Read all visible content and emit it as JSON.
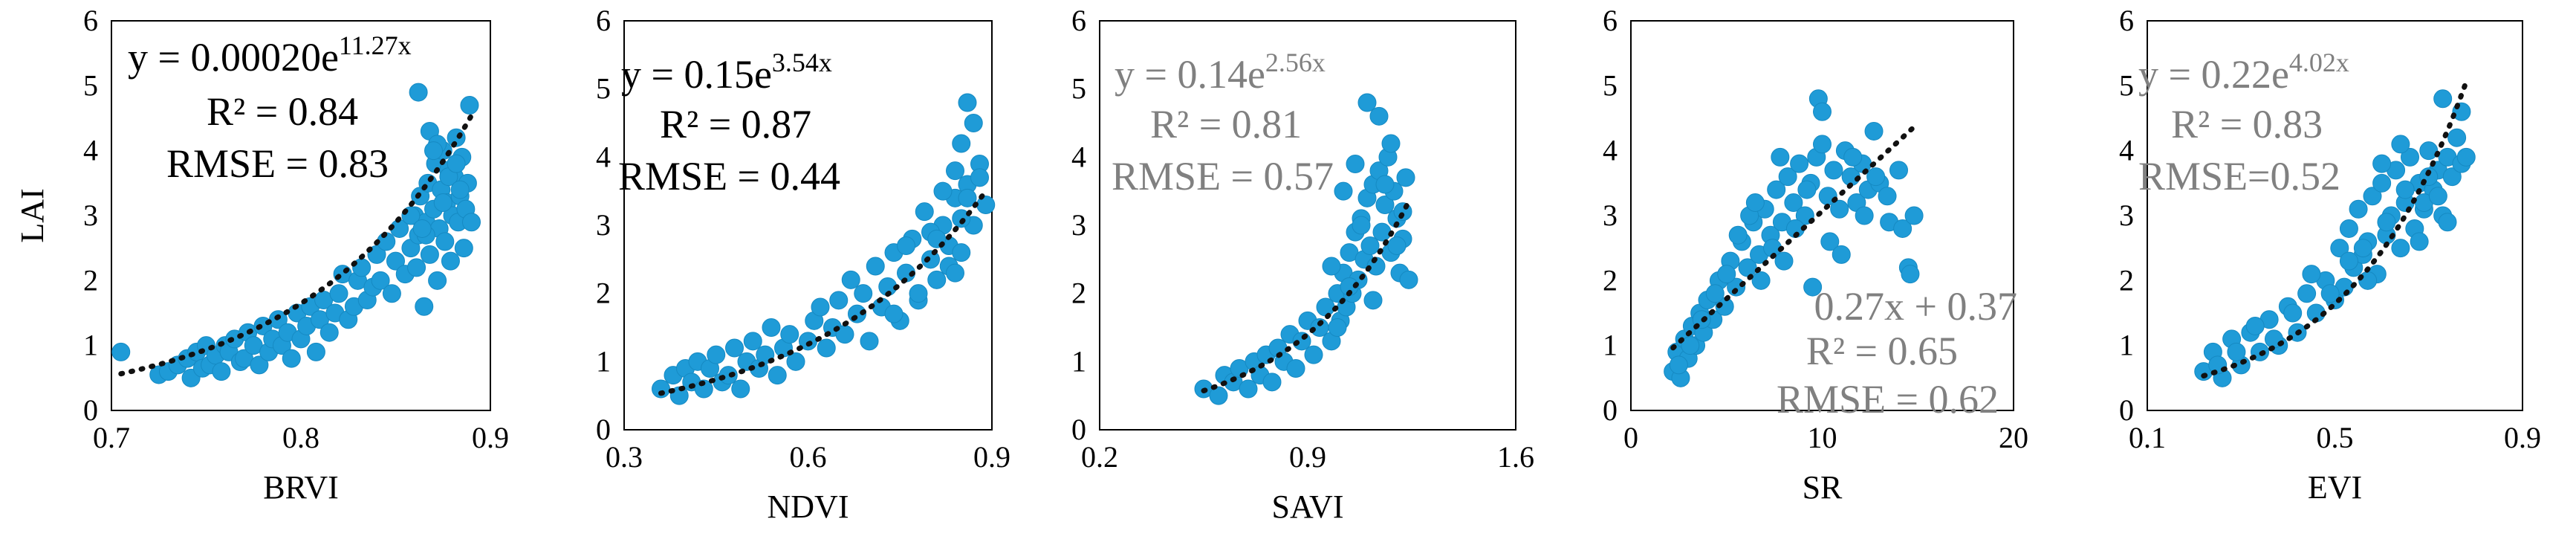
{
  "chart_data": [
    {
      "type": "scatter",
      "xlabel": "BRVI",
      "ylabel": "LAI",
      "xlim": [
        0.7,
        0.9
      ],
      "ylim": [
        0,
        6
      ],
      "xticks": [
        "0.7",
        "0.8",
        "0.9"
      ],
      "yticks": [
        "0",
        "1",
        "2",
        "3",
        "4",
        "5",
        "6"
      ],
      "fit": {
        "model": "exp",
        "a": 0.0002,
        "b": 11.27
      },
      "annotations": {
        "eq_main": "y = 0.00020e",
        "eq_exp": "11.27x",
        "r2": "R² = 0.84",
        "rmse": "RMSE = 0.83"
      },
      "points_x": [
        0.705,
        0.725,
        0.73,
        0.735,
        0.74,
        0.742,
        0.745,
        0.748,
        0.75,
        0.752,
        0.755,
        0.758,
        0.76,
        0.762,
        0.765,
        0.768,
        0.77,
        0.772,
        0.775,
        0.778,
        0.78,
        0.783,
        0.785,
        0.788,
        0.79,
        0.793,
        0.795,
        0.798,
        0.8,
        0.803,
        0.805,
        0.808,
        0.81,
        0.812,
        0.815,
        0.818,
        0.82,
        0.822,
        0.825,
        0.828,
        0.83,
        0.832,
        0.835,
        0.838,
        0.84,
        0.842,
        0.845,
        0.848,
        0.85,
        0.852,
        0.855,
        0.858,
        0.86,
        0.861,
        0.862,
        0.863,
        0.865,
        0.866,
        0.867,
        0.868,
        0.87,
        0.871,
        0.872,
        0.873,
        0.874,
        0.875,
        0.876,
        0.877,
        0.878,
        0.879,
        0.88,
        0.881,
        0.882,
        0.883,
        0.884,
        0.885,
        0.886,
        0.887,
        0.888,
        0.889,
        0.89,
        0.862,
        0.868,
        0.872,
        0.878,
        0.882,
        0.87,
        0.875,
        0.866,
        0.884,
        0.858,
        0.864
      ],
      "points_y": [
        0.9,
        0.55,
        0.6,
        0.7,
        0.8,
        0.5,
        0.9,
        0.65,
        1.0,
        0.7,
        0.85,
        0.6,
        1.0,
        0.9,
        1.1,
        0.75,
        0.8,
        1.2,
        1.0,
        0.7,
        1.3,
        0.9,
        1.1,
        1.4,
        1.0,
        1.2,
        0.8,
        1.5,
        1.1,
        1.3,
        1.6,
        0.9,
        1.4,
        1.7,
        1.2,
        1.5,
        1.8,
        2.1,
        1.4,
        1.6,
        2.0,
        2.2,
        1.7,
        1.9,
        2.4,
        2.0,
        2.6,
        1.8,
        2.3,
        2.8,
        2.1,
        2.5,
        3.0,
        2.2,
        2.7,
        3.3,
        1.6,
        2.9,
        3.5,
        2.4,
        3.1,
        3.8,
        2.0,
        2.8,
        3.4,
        4.0,
        2.6,
        3.2,
        3.7,
        2.3,
        3.0,
        3.6,
        4.2,
        2.9,
        3.3,
        3.9,
        2.5,
        3.1,
        3.5,
        4.7,
        2.9,
        4.9,
        4.3,
        4.1,
        3.6,
        3.8,
        4.0,
        3.2,
        2.7,
        3.4,
        3.0,
        2.8
      ]
    },
    {
      "type": "scatter",
      "xlabel": "NDVI",
      "ylabel": "",
      "xlim": [
        0.3,
        0.9
      ],
      "ylim": [
        0,
        6
      ],
      "xticks": [
        "0.3",
        "0.6",
        "0.9"
      ],
      "yticks": [
        "0",
        "1",
        "2",
        "3",
        "4",
        "5",
        "6"
      ],
      "fit": {
        "model": "exp",
        "a": 0.15,
        "b": 3.54
      },
      "annotations": {
        "eq_main": "y = 0.15e",
        "eq_exp": "3.54x",
        "r2": "R² = 0.87",
        "rmse": "RMSE = 0.44"
      },
      "points_x": [
        0.36,
        0.38,
        0.39,
        0.4,
        0.41,
        0.42,
        0.43,
        0.44,
        0.45,
        0.46,
        0.47,
        0.48,
        0.49,
        0.5,
        0.51,
        0.52,
        0.53,
        0.54,
        0.55,
        0.56,
        0.57,
        0.58,
        0.6,
        0.61,
        0.62,
        0.63,
        0.64,
        0.65,
        0.66,
        0.67,
        0.68,
        0.69,
        0.7,
        0.71,
        0.72,
        0.73,
        0.74,
        0.75,
        0.76,
        0.77,
        0.78,
        0.79,
        0.8,
        0.81,
        0.82,
        0.83,
        0.84,
        0.85,
        0.86,
        0.87,
        0.88,
        0.89,
        0.8,
        0.82,
        0.84,
        0.85,
        0.86,
        0.87,
        0.83,
        0.81,
        0.88,
        0.78,
        0.76,
        0.74,
        0.85,
        0.86,
        0.84
      ],
      "points_y": [
        0.6,
        0.8,
        0.5,
        0.9,
        0.7,
        1.0,
        0.6,
        0.9,
        1.1,
        0.7,
        0.8,
        1.2,
        0.6,
        1.0,
        1.3,
        0.9,
        1.1,
        1.5,
        0.8,
        1.2,
        1.4,
        1.0,
        1.3,
        1.6,
        1.8,
        1.2,
        1.5,
        1.9,
        1.4,
        2.2,
        1.7,
        2.0,
        1.3,
        2.4,
        1.8,
        2.1,
        2.6,
        1.6,
        2.3,
        2.8,
        1.9,
        3.2,
        2.5,
        2.2,
        3.0,
        2.7,
        3.4,
        2.6,
        3.6,
        3.0,
        3.9,
        3.3,
        2.9,
        3.5,
        3.8,
        4.2,
        4.8,
        4.5,
        2.4,
        2.8,
        3.7,
        2.0,
        2.7,
        1.7,
        3.1,
        3.4,
        2.3
      ]
    },
    {
      "type": "scatter",
      "xlabel": "SAVI",
      "ylabel": "",
      "xlim": [
        0.2,
        1.6
      ],
      "ylim": [
        0,
        6
      ],
      "xticks": [
        "0.2",
        "0.9",
        "1.6"
      ],
      "yticks": [
        "0",
        "1",
        "2",
        "3",
        "4",
        "5",
        "6"
      ],
      "fit": {
        "model": "exp",
        "a": 0.14,
        "b": 2.56
      },
      "annotations": {
        "eq_main": "y = 0.14e",
        "eq_exp": "2.56x",
        "r2": "R² = 0.81",
        "rmse": "RMSE = 0.57"
      },
      "points_x": [
        0.55,
        0.6,
        0.62,
        0.65,
        0.67,
        0.7,
        0.72,
        0.74,
        0.76,
        0.78,
        0.8,
        0.82,
        0.84,
        0.86,
        0.88,
        0.9,
        0.92,
        0.94,
        0.96,
        0.98,
        1.0,
        1.01,
        1.02,
        1.03,
        1.04,
        1.05,
        1.06,
        1.07,
        1.08,
        1.09,
        1.1,
        1.11,
        1.12,
        1.13,
        1.14,
        1.15,
        1.16,
        1.17,
        1.18,
        1.19,
        1.2,
        1.21,
        1.22,
        1.23,
        1.24,
        1.02,
        1.06,
        1.1,
        1.14,
        1.18,
        1.08,
        1.12,
        1.16,
        1.04,
        1.2,
        1.0,
        1.22,
        0.98
      ],
      "points_y": [
        0.6,
        0.5,
        0.8,
        0.7,
        0.9,
        0.6,
        1.0,
        0.8,
        1.1,
        0.7,
        1.2,
        1.0,
        1.4,
        0.9,
        1.3,
        1.6,
        1.1,
        1.5,
        1.8,
        1.3,
        2.0,
        1.6,
        2.3,
        1.8,
        2.6,
        2.0,
        2.9,
        2.2,
        3.1,
        2.5,
        3.4,
        2.7,
        3.6,
        2.4,
        3.8,
        2.9,
        3.3,
        4.0,
        2.6,
        3.5,
        3.1,
        2.3,
        2.8,
        3.7,
        2.2,
        3.5,
        3.9,
        4.8,
        4.6,
        4.2,
        3.0,
        1.9,
        3.6,
        2.1,
        2.7,
        1.5,
        3.2,
        2.4
      ]
    },
    {
      "type": "scatter",
      "xlabel": "SR",
      "ylabel": "",
      "xlim": [
        0,
        20
      ],
      "ylim": [
        0,
        6
      ],
      "xticks": [
        "0",
        "10",
        "20"
      ],
      "yticks": [
        "0",
        "1",
        "2",
        "3",
        "4",
        "5",
        "6"
      ],
      "fit": {
        "model": "linear",
        "a": 0.27,
        "b": 0.37
      },
      "annotations": {
        "eq_main": "0.27x + 0.37",
        "eq_exp": "",
        "r2": "R² = 0.65",
        "rmse": "RMSE = 0.62"
      },
      "points_x": [
        2.2,
        2.4,
        2.6,
        2.8,
        3.0,
        3.2,
        3.4,
        3.6,
        3.8,
        4.0,
        4.3,
        4.6,
        4.9,
        5.2,
        5.5,
        5.8,
        6.1,
        6.4,
        6.7,
        7.0,
        7.3,
        7.6,
        7.9,
        8.2,
        8.5,
        8.8,
        9.1,
        9.4,
        9.7,
        10.0,
        10.3,
        10.6,
        10.9,
        11.2,
        11.5,
        11.8,
        12.1,
        12.4,
        12.7,
        13.0,
        13.5,
        14.0,
        14.5,
        2.5,
        3.1,
        3.7,
        4.4,
        5.0,
        5.6,
        6.2,
        6.8,
        7.4,
        8.0,
        8.6,
        9.2,
        9.8,
        10.4,
        11.0,
        11.6,
        12.2,
        12.8,
        13.4,
        14.2,
        14.6,
        14.8,
        10.0,
        6.5,
        7.8,
        9.5
      ],
      "points_y": [
        0.6,
        0.9,
        0.5,
        1.1,
        0.8,
        1.3,
        1.0,
        1.5,
        1.2,
        1.7,
        1.4,
        2.0,
        1.6,
        2.3,
        1.9,
        2.6,
        2.2,
        2.9,
        2.4,
        3.1,
        2.7,
        3.4,
        2.9,
        3.6,
        3.2,
        3.8,
        3.0,
        3.5,
        3.9,
        4.1,
        3.3,
        3.7,
        3.1,
        4.0,
        3.6,
        3.2,
        3.8,
        3.4,
        4.3,
        3.5,
        2.9,
        3.7,
        2.2,
        0.7,
        1.0,
        1.4,
        1.8,
        2.1,
        2.7,
        3.0,
        2.0,
        2.5,
        2.3,
        2.8,
        3.4,
        4.8,
        2.6,
        2.4,
        3.9,
        3.0,
        3.6,
        3.3,
        2.8,
        2.1,
        3.0,
        4.6,
        3.2,
        3.9,
        1.9
      ]
    },
    {
      "type": "scatter",
      "xlabel": "EVI",
      "ylabel": "",
      "xlim": [
        0.1,
        0.9
      ],
      "ylim": [
        0,
        6
      ],
      "xticks": [
        "0.1",
        "0.5",
        "0.9"
      ],
      "yticks": [
        "0",
        "1",
        "2",
        "3",
        "4",
        "5",
        "6"
      ],
      "fit": {
        "model": "exp",
        "a": 0.22,
        "b": 4.02
      },
      "annotations": {
        "eq_main": "y = 0.22e",
        "eq_exp": "4.02x",
        "r2": "R² = 0.83",
        "rmse": "RMSE=0.52"
      },
      "points_x": [
        0.22,
        0.24,
        0.26,
        0.28,
        0.3,
        0.32,
        0.34,
        0.36,
        0.38,
        0.4,
        0.42,
        0.44,
        0.46,
        0.48,
        0.5,
        0.51,
        0.52,
        0.53,
        0.54,
        0.55,
        0.56,
        0.57,
        0.58,
        0.59,
        0.6,
        0.61,
        0.62,
        0.63,
        0.64,
        0.65,
        0.66,
        0.67,
        0.68,
        0.69,
        0.7,
        0.71,
        0.72,
        0.73,
        0.74,
        0.75,
        0.76,
        0.77,
        0.78,
        0.25,
        0.29,
        0.33,
        0.37,
        0.41,
        0.45,
        0.49,
        0.53,
        0.57,
        0.61,
        0.65,
        0.69,
        0.73,
        0.77,
        0.72,
        0.68,
        0.64,
        0.6,
        0.56,
        0.74,
        0.7
      ],
      "points_y": [
        0.6,
        0.9,
        0.5,
        1.1,
        0.7,
        1.2,
        0.9,
        1.4,
        1.0,
        1.6,
        1.2,
        1.8,
        1.5,
        2.0,
        1.7,
        2.5,
        1.9,
        2.8,
        2.2,
        3.1,
        2.4,
        2.6,
        3.3,
        2.1,
        3.5,
        2.7,
        3.0,
        3.7,
        2.5,
        3.2,
        3.9,
        2.8,
        3.5,
        3.1,
        4.0,
        3.4,
        3.7,
        3.0,
        3.9,
        3.6,
        4.2,
        3.8,
        3.9,
        0.7,
        0.9,
        1.3,
        1.1,
        1.5,
        2.1,
        1.8,
        2.3,
        2.0,
        2.9,
        3.4,
        3.2,
        4.8,
        4.6,
        3.3,
        2.6,
        4.1,
        3.8,
        2.5,
        2.9,
        3.6
      ]
    }
  ]
}
